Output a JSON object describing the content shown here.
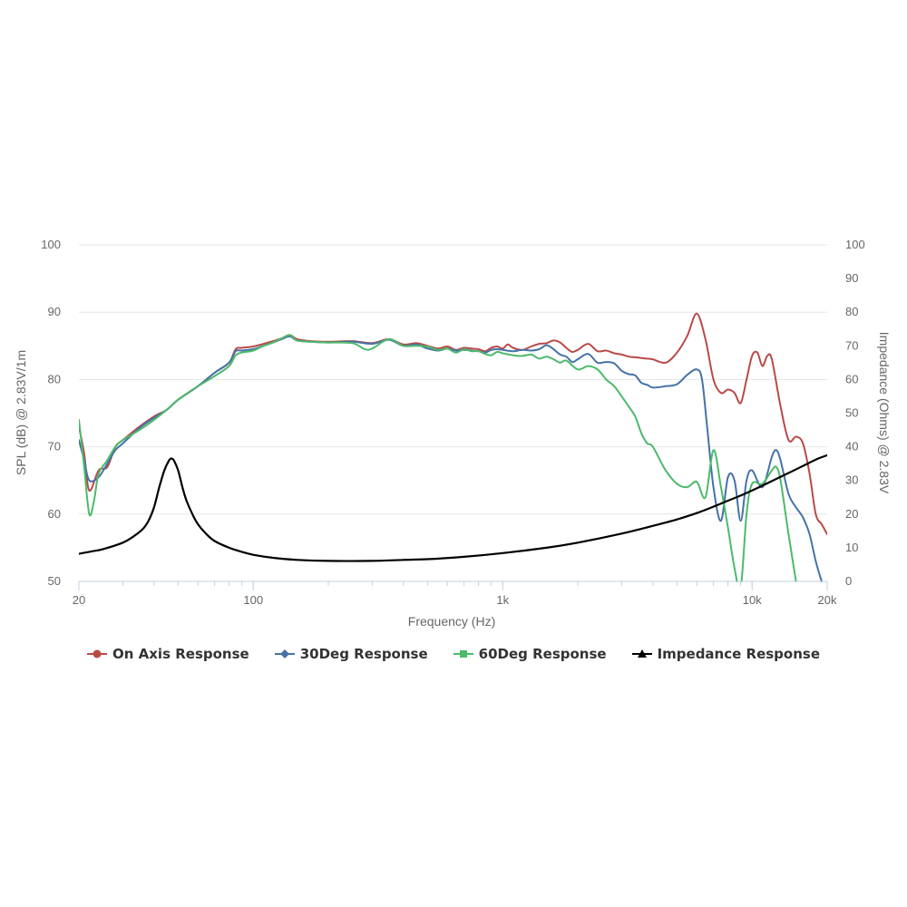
{
  "chart_data": {
    "type": "line",
    "xlabel": "Frequency (Hz)",
    "ylabel_left": "SPL (dB) @ 2.83V/1m",
    "ylabel_right": "Impedance (Ohms) @ 2.83V",
    "x_scale": "log",
    "xlim": [
      20,
      20000
    ],
    "ylim_left": [
      50,
      100
    ],
    "ylim_right": [
      0,
      100
    ],
    "x_ticks": [
      {
        "value": 20,
        "label": "20"
      },
      {
        "value": 100,
        "label": "100"
      },
      {
        "value": 1000,
        "label": "1k"
      },
      {
        "value": 10000,
        "label": "10k"
      },
      {
        "value": 20000,
        "label": "20k"
      }
    ],
    "y_ticks_left": [
      50,
      60,
      70,
      80,
      90,
      100
    ],
    "y_ticks_right": [
      0,
      10,
      20,
      30,
      40,
      50,
      60,
      70,
      80,
      90,
      100
    ],
    "grid": true,
    "legend_position": "bottom",
    "series": [
      {
        "name": "On Axis Response",
        "axis": "left",
        "color": "#b94a48",
        "marker": "circle",
        "points": [
          [
            20,
            73
          ],
          [
            21,
            69
          ],
          [
            22,
            63.5
          ],
          [
            24,
            66.5
          ],
          [
            26,
            67
          ],
          [
            28,
            70
          ],
          [
            30,
            71
          ],
          [
            35,
            73
          ],
          [
            40,
            74.5
          ],
          [
            45,
            75.5
          ],
          [
            50,
            77
          ],
          [
            60,
            79
          ],
          [
            70,
            81
          ],
          [
            80,
            82.5
          ],
          [
            85,
            84.5
          ],
          [
            90,
            84.7
          ],
          [
            100,
            84.9
          ],
          [
            110,
            85.3
          ],
          [
            120,
            85.7
          ],
          [
            130,
            86.1
          ],
          [
            140,
            86.6
          ],
          [
            150,
            86
          ],
          [
            170,
            85.7
          ],
          [
            200,
            85.6
          ],
          [
            250,
            85.7
          ],
          [
            300,
            85.4
          ],
          [
            350,
            86
          ],
          [
            400,
            85.2
          ],
          [
            450,
            85.4
          ],
          [
            500,
            85
          ],
          [
            550,
            84.6
          ],
          [
            600,
            84.9
          ],
          [
            650,
            84.4
          ],
          [
            700,
            84.7
          ],
          [
            750,
            84.6
          ],
          [
            800,
            84.5
          ],
          [
            850,
            84.2
          ],
          [
            900,
            84.7
          ],
          [
            950,
            84.9
          ],
          [
            1000,
            84.6
          ],
          [
            1050,
            85.2
          ],
          [
            1100,
            84.7
          ],
          [
            1200,
            84.4
          ],
          [
            1300,
            84.9
          ],
          [
            1400,
            85.3
          ],
          [
            1500,
            85.4
          ],
          [
            1600,
            85.8
          ],
          [
            1700,
            85.5
          ],
          [
            1800,
            84.7
          ],
          [
            1900,
            84.1
          ],
          [
            2000,
            84.4
          ],
          [
            2200,
            85.3
          ],
          [
            2400,
            84.2
          ],
          [
            2600,
            84.3
          ],
          [
            2800,
            83.9
          ],
          [
            3000,
            83.7
          ],
          [
            3200,
            83.4
          ],
          [
            3400,
            83.3
          ],
          [
            3600,
            83.2
          ],
          [
            3800,
            83.1
          ],
          [
            4000,
            83
          ],
          [
            4500,
            82.5
          ],
          [
            5000,
            84
          ],
          [
            5500,
            86.5
          ],
          [
            6000,
            89.8
          ],
          [
            6500,
            86
          ],
          [
            7000,
            80
          ],
          [
            7500,
            78
          ],
          [
            8000,
            78.5
          ],
          [
            8500,
            78
          ],
          [
            9000,
            76.5
          ],
          [
            9500,
            80
          ],
          [
            10000,
            83.5
          ],
          [
            10500,
            84
          ],
          [
            11000,
            82
          ],
          [
            11500,
            83.5
          ],
          [
            12000,
            83
          ],
          [
            13000,
            76
          ],
          [
            14000,
            71
          ],
          [
            15000,
            71.5
          ],
          [
            16000,
            70.5
          ],
          [
            17000,
            66
          ],
          [
            18000,
            60
          ],
          [
            19000,
            58.5
          ],
          [
            20000,
            57
          ]
        ]
      },
      {
        "name": "30Deg Response",
        "axis": "left",
        "color": "#4572a7",
        "marker": "diamond",
        "points": [
          [
            20,
            71
          ],
          [
            21,
            68
          ],
          [
            22,
            65
          ],
          [
            24,
            65.5
          ],
          [
            26,
            67.5
          ],
          [
            28,
            69.5
          ],
          [
            30,
            70.5
          ],
          [
            35,
            72.8
          ],
          [
            40,
            74.3
          ],
          [
            45,
            75.5
          ],
          [
            50,
            77
          ],
          [
            60,
            79
          ],
          [
            70,
            81
          ],
          [
            80,
            82.5
          ],
          [
            85,
            84.2
          ],
          [
            90,
            84.3
          ],
          [
            100,
            84.5
          ],
          [
            110,
            85
          ],
          [
            120,
            85.5
          ],
          [
            130,
            86
          ],
          [
            140,
            86.4
          ],
          [
            150,
            85.8
          ],
          [
            170,
            85.6
          ],
          [
            200,
            85.5
          ],
          [
            250,
            85.6
          ],
          [
            300,
            85.3
          ],
          [
            350,
            85.9
          ],
          [
            400,
            85
          ],
          [
            450,
            85.2
          ],
          [
            500,
            84.6
          ],
          [
            550,
            84.3
          ],
          [
            600,
            84.6
          ],
          [
            650,
            84.3
          ],
          [
            700,
            84.4
          ],
          [
            750,
            84.3
          ],
          [
            800,
            84.2
          ],
          [
            850,
            84
          ],
          [
            900,
            84.4
          ],
          [
            950,
            84.5
          ],
          [
            1000,
            84.4
          ],
          [
            1100,
            84.2
          ],
          [
            1200,
            84.4
          ],
          [
            1300,
            84.3
          ],
          [
            1400,
            84.5
          ],
          [
            1500,
            85.1
          ],
          [
            1600,
            84.5
          ],
          [
            1700,
            83.7
          ],
          [
            1800,
            83.4
          ],
          [
            1900,
            82.6
          ],
          [
            2000,
            83
          ],
          [
            2200,
            83.8
          ],
          [
            2400,
            82.5
          ],
          [
            2600,
            82.6
          ],
          [
            2800,
            82.4
          ],
          [
            3000,
            81.3
          ],
          [
            3200,
            80.8
          ],
          [
            3400,
            80.6
          ],
          [
            3600,
            79.5
          ],
          [
            3800,
            79.2
          ],
          [
            4000,
            78.8
          ],
          [
            4500,
            79
          ],
          [
            5000,
            79.3
          ],
          [
            5500,
            80.7
          ],
          [
            6000,
            81.5
          ],
          [
            6300,
            80
          ],
          [
            6600,
            73
          ],
          [
            7000,
            64
          ],
          [
            7500,
            59
          ],
          [
            8000,
            65.5
          ],
          [
            8500,
            65
          ],
          [
            9000,
            59
          ],
          [
            9500,
            65
          ],
          [
            10000,
            66.5
          ],
          [
            11000,
            64
          ],
          [
            12000,
            68.5
          ],
          [
            12500,
            69.5
          ],
          [
            13000,
            68
          ],
          [
            14000,
            63
          ],
          [
            15000,
            61
          ],
          [
            16000,
            59.5
          ],
          [
            17000,
            57
          ],
          [
            18000,
            53
          ],
          [
            19000,
            50
          ]
        ]
      },
      {
        "name": "60Deg Response",
        "axis": "left",
        "color": "#4cba6b",
        "marker": "square",
        "points": [
          [
            20,
            74
          ],
          [
            21,
            67
          ],
          [
            22,
            60
          ],
          [
            23,
            62
          ],
          [
            24,
            66
          ],
          [
            26,
            68
          ],
          [
            28,
            70
          ],
          [
            30,
            71
          ],
          [
            35,
            72.5
          ],
          [
            40,
            74
          ],
          [
            45,
            75.5
          ],
          [
            50,
            77
          ],
          [
            60,
            79
          ],
          [
            70,
            80.5
          ],
          [
            80,
            82
          ],
          [
            85,
            83.6
          ],
          [
            90,
            84
          ],
          [
            100,
            84.3
          ],
          [
            110,
            85
          ],
          [
            120,
            85.5
          ],
          [
            130,
            86.1
          ],
          [
            140,
            86.6
          ],
          [
            150,
            85.8
          ],
          [
            170,
            85.6
          ],
          [
            200,
            85.5
          ],
          [
            250,
            85.4
          ],
          [
            280,
            84.5
          ],
          [
            300,
            84.6
          ],
          [
            350,
            86
          ],
          [
            400,
            85
          ],
          [
            450,
            85
          ],
          [
            500,
            84.9
          ],
          [
            550,
            84.4
          ],
          [
            600,
            84.6
          ],
          [
            650,
            84
          ],
          [
            700,
            84.5
          ],
          [
            750,
            84.2
          ],
          [
            800,
            84.2
          ],
          [
            850,
            83.8
          ],
          [
            900,
            83.6
          ],
          [
            950,
            84.1
          ],
          [
            1000,
            83.9
          ],
          [
            1100,
            83.6
          ],
          [
            1200,
            83.5
          ],
          [
            1300,
            83.7
          ],
          [
            1400,
            83.1
          ],
          [
            1500,
            83.4
          ],
          [
            1600,
            83
          ],
          [
            1700,
            82.5
          ],
          [
            1800,
            82.8
          ],
          [
            2000,
            81.5
          ],
          [
            2200,
            82
          ],
          [
            2400,
            81.5
          ],
          [
            2600,
            80
          ],
          [
            2800,
            79
          ],
          [
            3000,
            77.5
          ],
          [
            3200,
            76
          ],
          [
            3400,
            74.5
          ],
          [
            3600,
            72
          ],
          [
            3800,
            70.5
          ],
          [
            4000,
            70
          ],
          [
            4500,
            66.5
          ],
          [
            5000,
            64.5
          ],
          [
            5500,
            64
          ],
          [
            6000,
            64.8
          ],
          [
            6500,
            62.5
          ],
          [
            7000,
            69.5
          ],
          [
            7500,
            64
          ],
          [
            8000,
            58
          ],
          [
            8500,
            52
          ],
          [
            9000,
            49
          ],
          [
            9500,
            60
          ],
          [
            10000,
            64.5
          ],
          [
            11000,
            64.5
          ],
          [
            12000,
            66.5
          ],
          [
            12500,
            67
          ],
          [
            13000,
            65
          ],
          [
            14000,
            57
          ],
          [
            15000,
            50
          ]
        ]
      },
      {
        "name": "Impedance Response",
        "axis": "right",
        "color": "#000000",
        "marker": "triangle",
        "points": [
          [
            20,
            8.2
          ],
          [
            22,
            8.8
          ],
          [
            25,
            9.6
          ],
          [
            30,
            11.5
          ],
          [
            33,
            13.3
          ],
          [
            36,
            15.5
          ],
          [
            38,
            18
          ],
          [
            40,
            22
          ],
          [
            42,
            28
          ],
          [
            44,
            33
          ],
          [
            46,
            36
          ],
          [
            47,
            36.5
          ],
          [
            48,
            36
          ],
          [
            50,
            33
          ],
          [
            52,
            28
          ],
          [
            54,
            24
          ],
          [
            57,
            20
          ],
          [
            60,
            17
          ],
          [
            65,
            14
          ],
          [
            70,
            12
          ],
          [
            80,
            10
          ],
          [
            90,
            8.8
          ],
          [
            100,
            7.9
          ],
          [
            120,
            7
          ],
          [
            150,
            6.4
          ],
          [
            200,
            6.1
          ],
          [
            300,
            6.1
          ],
          [
            400,
            6.4
          ],
          [
            500,
            6.6
          ],
          [
            700,
            7.3
          ],
          [
            1000,
            8.4
          ],
          [
            1500,
            10
          ],
          [
            2000,
            11.5
          ],
          [
            3000,
            14.2
          ],
          [
            4000,
            16.5
          ],
          [
            5000,
            18.4
          ],
          [
            6000,
            20.3
          ],
          [
            7000,
            22.2
          ],
          [
            8000,
            24
          ],
          [
            9000,
            25.5
          ],
          [
            10000,
            27
          ],
          [
            12000,
            29.8
          ],
          [
            14000,
            32.2
          ],
          [
            16000,
            34.3
          ],
          [
            18000,
            36.2
          ],
          [
            20000,
            37.5
          ]
        ]
      }
    ]
  }
}
